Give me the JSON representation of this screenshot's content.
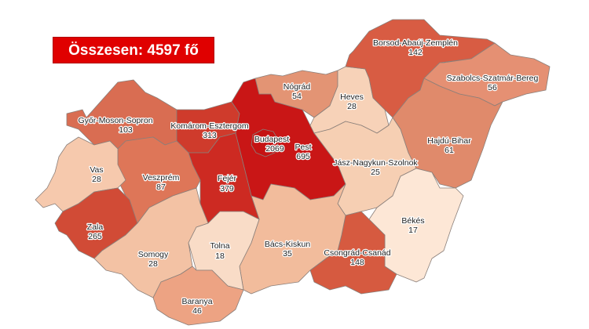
{
  "total_label": "Összesen: 4597 fő",
  "total_color": "#e00000",
  "counties": {
    "gyor": {
      "name": "Győr-Moson-Sopron",
      "value": "103",
      "color": "#d96d52"
    },
    "komarom": {
      "name": "Komárom-Esztergom",
      "value": "313",
      "color": "#cf3b2c"
    },
    "budapest": {
      "name": "Budapest",
      "value": "2069",
      "color": "#c51313"
    },
    "pest": {
      "name": "Pest",
      "value": "695",
      "color": "#c91616"
    },
    "nograd": {
      "name": "Nógrád",
      "value": "54",
      "color": "#e39474"
    },
    "heves": {
      "name": "Heves",
      "value": "28",
      "color": "#f7d2b8"
    },
    "borsod": {
      "name": "Borsod-Abaúj-Zemplén",
      "value": "142",
      "color": "#d85c43"
    },
    "szabolcs": {
      "name": "Szabolcs-Szatmár-Bereg",
      "value": "56",
      "color": "#e59073"
    },
    "hajdu": {
      "name": "Hajdú-Bihar",
      "value": "61",
      "color": "#e08a6b"
    },
    "jasz": {
      "name": "Jász-Nagykun-Szolnok",
      "value": "25",
      "color": "#f6cfb3"
    },
    "bekes": {
      "name": "Békés",
      "value": "17",
      "color": "#fde7d6"
    },
    "csongrad": {
      "name": "Csongrád-Csanád",
      "value": "148",
      "color": "#d65a40"
    },
    "bacs": {
      "name": "Bács-Kiskun",
      "value": "35",
      "color": "#f2bc9c"
    },
    "fejer": {
      "name": "Fejér",
      "value": "379",
      "color": "#cd2a22"
    },
    "veszprem": {
      "name": "Veszprém",
      "value": "87",
      "color": "#de7658"
    },
    "vas": {
      "name": "Vas",
      "value": "28",
      "color": "#f6c9ad"
    },
    "zala": {
      "name": "Zala",
      "value": "265",
      "color": "#d14b36"
    },
    "somogy": {
      "name": "Somogy",
      "value": "28",
      "color": "#f3c2a4"
    },
    "tolna": {
      "name": "Tolna",
      "value": "18",
      "color": "#f9dcc7"
    },
    "baranya": {
      "name": "Baranya",
      "value": "46",
      "color": "#eda383"
    }
  }
}
